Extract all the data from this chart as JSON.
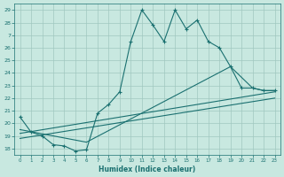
{
  "xlabel": "Humidex (Indice chaleur)",
  "bg_color": "#c8e8e0",
  "line_color": "#1a7070",
  "xlim": [
    -0.5,
    23.5
  ],
  "ylim": [
    17.5,
    29.5
  ],
  "yticks": [
    18,
    19,
    20,
    21,
    22,
    23,
    24,
    25,
    26,
    27,
    28,
    29
  ],
  "xticks": [
    0,
    1,
    2,
    3,
    4,
    5,
    6,
    7,
    8,
    9,
    10,
    11,
    12,
    13,
    14,
    15,
    16,
    17,
    18,
    19,
    20,
    21,
    22,
    23
  ],
  "grid_color": "#a0c8c0",
  "line1_x": [
    0,
    1,
    2,
    3,
    4,
    5,
    6,
    7,
    8,
    9,
    10,
    11,
    12,
    13,
    14,
    15,
    16,
    17,
    18,
    19,
    20,
    21,
    22,
    23
  ],
  "line1_y": [
    20.5,
    19.3,
    19.0,
    18.3,
    18.2,
    17.8,
    17.9,
    20.8,
    21.5,
    22.5,
    26.5,
    29.0,
    27.8,
    26.5,
    29.0,
    27.5,
    28.2,
    26.5,
    26.0,
    24.5,
    22.8,
    22.8,
    22.6,
    22.6
  ],
  "line2_x": [
    0,
    6,
    19,
    21,
    22,
    23
  ],
  "line2_y": [
    19.5,
    18.5,
    24.5,
    22.8,
    22.6,
    22.6
  ],
  "line3_x": [
    0,
    23
  ],
  "line3_y": [
    19.2,
    22.5
  ],
  "line4_x": [
    0,
    23
  ],
  "line4_y": [
    18.8,
    22.0
  ]
}
